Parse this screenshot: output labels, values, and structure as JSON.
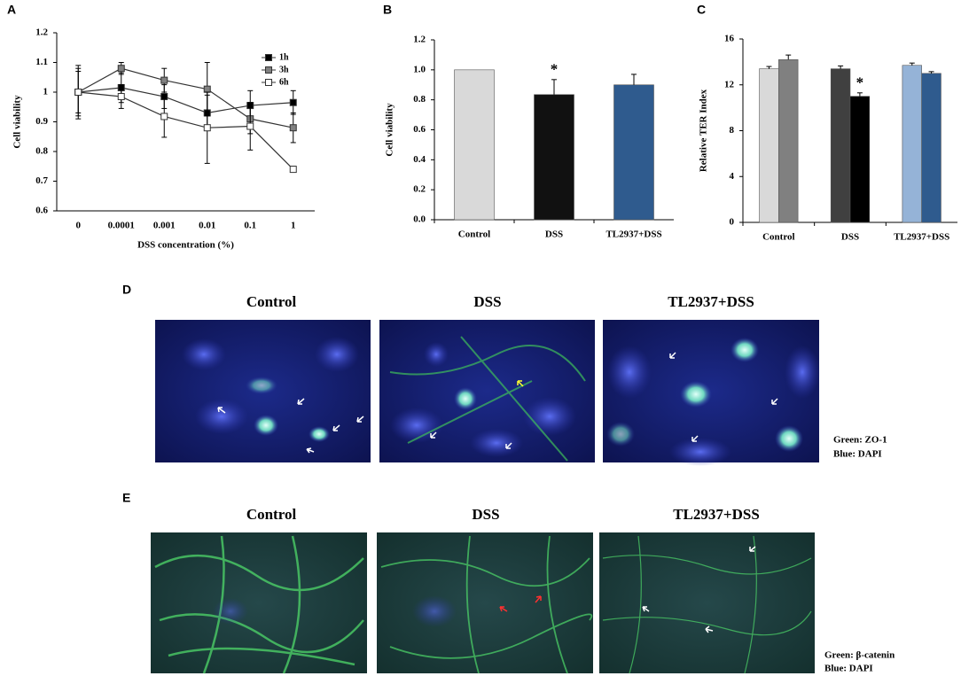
{
  "chart_data": [
    {
      "type": "line",
      "label": "A",
      "ylabel": "Cell viability",
      "xlabel": "DSS concentration (%)",
      "categories": [
        "0",
        "0.0001",
        "0.001",
        "0.01",
        "0.1",
        "1"
      ],
      "series": [
        {
          "name": "1h",
          "color": "#000000",
          "values": [
            1.0,
            1.015,
            0.985,
            0.93,
            0.955,
            0.965
          ],
          "errors": [
            0.08,
            0.05,
            0.04,
            0.06,
            0.05,
            0.04
          ]
        },
        {
          "name": "3h",
          "color": "#808080",
          "values": [
            1.0,
            1.08,
            1.04,
            1.01,
            0.91,
            0.88
          ],
          "errors": [
            0.07,
            0.02,
            0.04,
            0.09,
            0.05,
            0.05
          ]
        },
        {
          "name": "6h",
          "color": "#ffffff",
          "values": [
            1.0,
            0.985,
            0.918,
            0.88,
            0.885,
            0.74
          ],
          "errors": [
            0.09,
            0.04,
            0.07,
            0.12,
            0.08,
            0.01
          ]
        }
      ],
      "ylim": [
        0.6,
        1.2
      ],
      "yticks": [
        0.6,
        0.7,
        0.8,
        0.9,
        1,
        1.1,
        1.2
      ],
      "legend": "top-right"
    },
    {
      "type": "bar",
      "label": "B",
      "ylabel": "Cell viability",
      "categories": [
        "Control",
        "DSS",
        "TL2937+DSS"
      ],
      "values": [
        1.0,
        0.835,
        0.9
      ],
      "errors": [
        0,
        0.1,
        0.07
      ],
      "colors": [
        "#d9d9d9",
        "#111111",
        "#2f5b8e"
      ],
      "ylim": [
        0,
        1.2
      ],
      "yticks": [
        {
          "value": 0,
          "label": "0.0"
        },
        0.2,
        0.4,
        0.6,
        0.8,
        {
          "value": 1,
          "label": "1.0"
        },
        1.2
      ],
      "annotations": [
        "*"
      ]
    },
    {
      "type": "bar",
      "label": "C",
      "ylabel": "Relative TER Index",
      "categories": [
        "Control",
        "DSS",
        "TL2937+DSS"
      ],
      "series": [
        {
          "values": [
            13.4,
            13.4,
            13.7
          ],
          "errors": [
            0.2,
            0.25,
            0.2
          ],
          "colors": [
            "#d9d9d9",
            "#404040",
            "#95b3d7"
          ]
        },
        {
          "values": [
            14.2,
            11.0,
            13.0
          ],
          "errors": [
            0.4,
            0.3,
            0.15
          ],
          "colors": [
            "#808080",
            "#000000",
            "#2f5b8e"
          ]
        }
      ],
      "ylim": [
        0,
        16
      ],
      "yticks": [
        0,
        4,
        8,
        12,
        16
      ],
      "annotations": [
        "*"
      ]
    }
  ],
  "panels": {
    "D": {
      "label": "D",
      "titles": [
        "Control",
        "DSS",
        "TL2937+DSS"
      ],
      "legend": [
        "Green: ZO-1",
        "Blue: DAPI"
      ]
    },
    "E": {
      "label": "E",
      "titles": [
        "Control",
        "DSS",
        "TL2937+DSS"
      ],
      "legend": [
        "Green: β-catenin",
        "Blue: DAPI"
      ]
    }
  }
}
